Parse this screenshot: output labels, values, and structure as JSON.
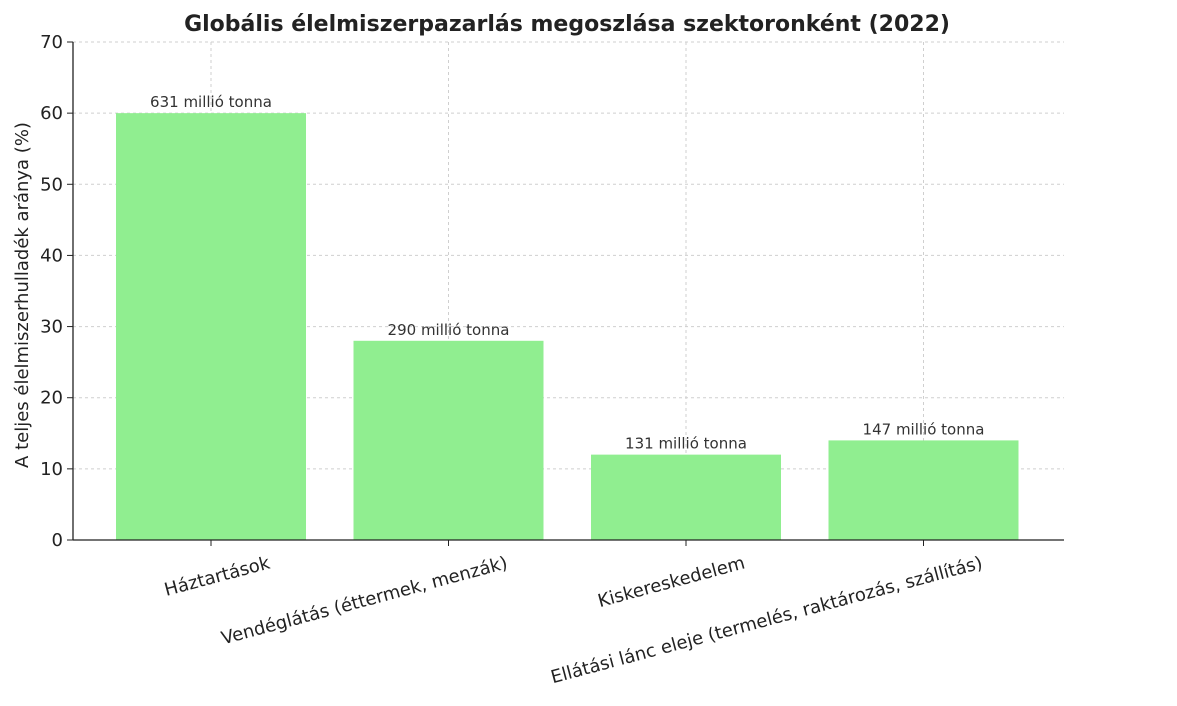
{
  "chart_data": {
    "type": "bar",
    "title": "Globális élelmiszerpazarlás megoszlása szektoronként (2022)",
    "xlabel": "",
    "ylabel": "A teljes élelmiszerhulladék aránya (%)",
    "categories": [
      "Háztartások",
      "Vendéglátás (éttermek, menzák)",
      "Kiskereskedelem",
      "Ellátási lánc eleje (termelés, raktározás, szállítás)"
    ],
    "values": [
      60,
      28,
      12,
      14
    ],
    "data_labels": [
      "631 millió tonna",
      "290 millió tonna",
      "131 millió tonna",
      "147 millió tonna"
    ],
    "ylim": [
      0,
      70
    ],
    "yticks": [
      0,
      10,
      20,
      30,
      40,
      50,
      60,
      70
    ],
    "grid": true,
    "bar_color": "#90ee90",
    "x_tick_rotation_deg": 15
  }
}
